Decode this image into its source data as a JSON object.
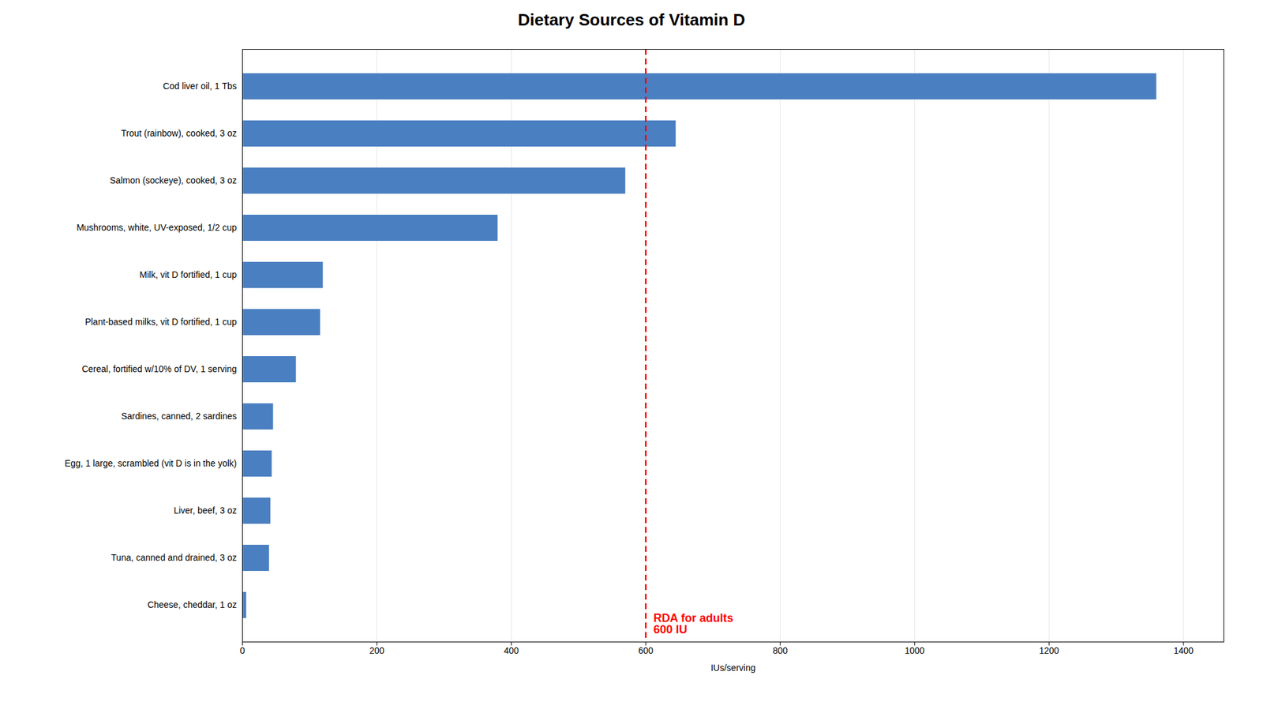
{
  "chart_data": {
    "type": "bar",
    "orientation": "horizontal",
    "title": "Dietary Sources of Vitamin D",
    "xlabel": "IUs/serving",
    "categories": [
      "Cheese, cheddar, 1 oz",
      "Tuna, canned and drained, 3 oz",
      "Liver, beef, 3 oz",
      "Egg, 1 large, scrambled (vit D is in the yolk)",
      "Sardines, canned, 2 sardines",
      "Cereal, fortified w/10% of DV, 1 serving",
      "Plant-based milks, vit D fortified, 1 cup",
      "Milk, vit D fortified, 1 cup",
      "Mushrooms, white, UV-exposed, 1/2 cup",
      "Salmon (sockeye), cooked, 3 oz",
      "Trout (rainbow), cooked, 3 oz",
      "Cod liver oil, 1 Tbs"
    ],
    "values": [
      6,
      40,
      42,
      44,
      46,
      80,
      116,
      120,
      380,
      570,
      645,
      1360
    ],
    "color": "#4a7fc1",
    "xlim": [
      0,
      1460
    ],
    "xticks": [
      0,
      200,
      400,
      600,
      800,
      1000,
      1200,
      1400
    ],
    "grid": true,
    "annotations": [
      {
        "x": 600,
        "text": "RDA for adults\n600 IU",
        "color": "red"
      }
    ]
  }
}
